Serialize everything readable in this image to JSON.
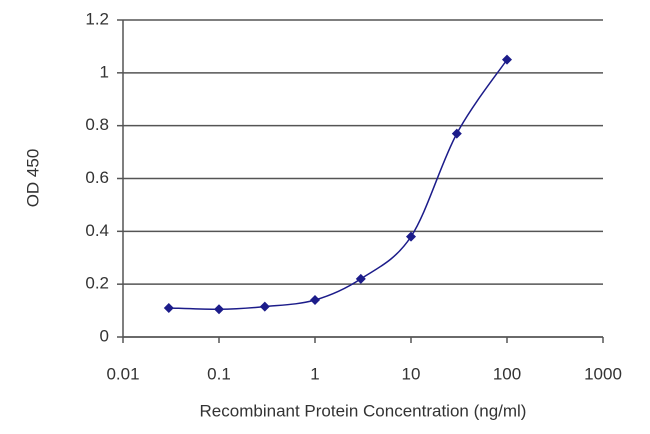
{
  "chart_data": {
    "type": "line",
    "x_label": "Recombinant Protein Concentration (ng/ml)",
    "y_label": "OD 450",
    "x": [
      0.03,
      0.1,
      0.3,
      1,
      3,
      10,
      30,
      100
    ],
    "series": [
      {
        "color": "#1c1c8a",
        "values": [
          0.11,
          0.105,
          0.115,
          0.14,
          0.22,
          0.38,
          0.77,
          1.05
        ]
      }
    ],
    "xlim": [
      0.01,
      1000
    ],
    "xticks": [
      0.01,
      0.1,
      1,
      10,
      100,
      1000
    ],
    "x_log": true,
    "ylim": [
      0,
      1.2
    ],
    "yticks": [
      0,
      0.2,
      0.4,
      0.6,
      0.8,
      1,
      1.2
    ],
    "grid": true,
    "smooth": true
  }
}
